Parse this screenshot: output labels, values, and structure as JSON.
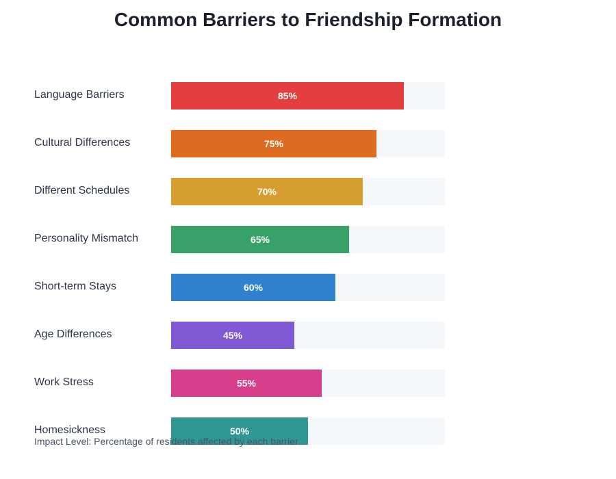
{
  "chart_data": {
    "type": "bar",
    "orientation": "horizontal",
    "title": "Common Barriers to Friendship Formation",
    "categories": [
      "Language Barriers",
      "Cultural Differences",
      "Different Schedules",
      "Personality Mismatch",
      "Short-term Stays",
      "Age Differences",
      "Work Stress",
      "Homesickness"
    ],
    "values": [
      85,
      75,
      70,
      65,
      60,
      45,
      55,
      50
    ],
    "value_labels": [
      "85%",
      "75%",
      "70%",
      "65%",
      "60%",
      "45%",
      "55%",
      "50%"
    ],
    "colors": [
      "#e53e3e",
      "#dd6b20",
      "#d69e2e",
      "#38a169",
      "#3182ce",
      "#805ad5",
      "#d53f8c",
      "#319795"
    ],
    "xlim": [
      0,
      100
    ],
    "note": "Impact Level: Percentage of residents affected by each barrier"
  }
}
